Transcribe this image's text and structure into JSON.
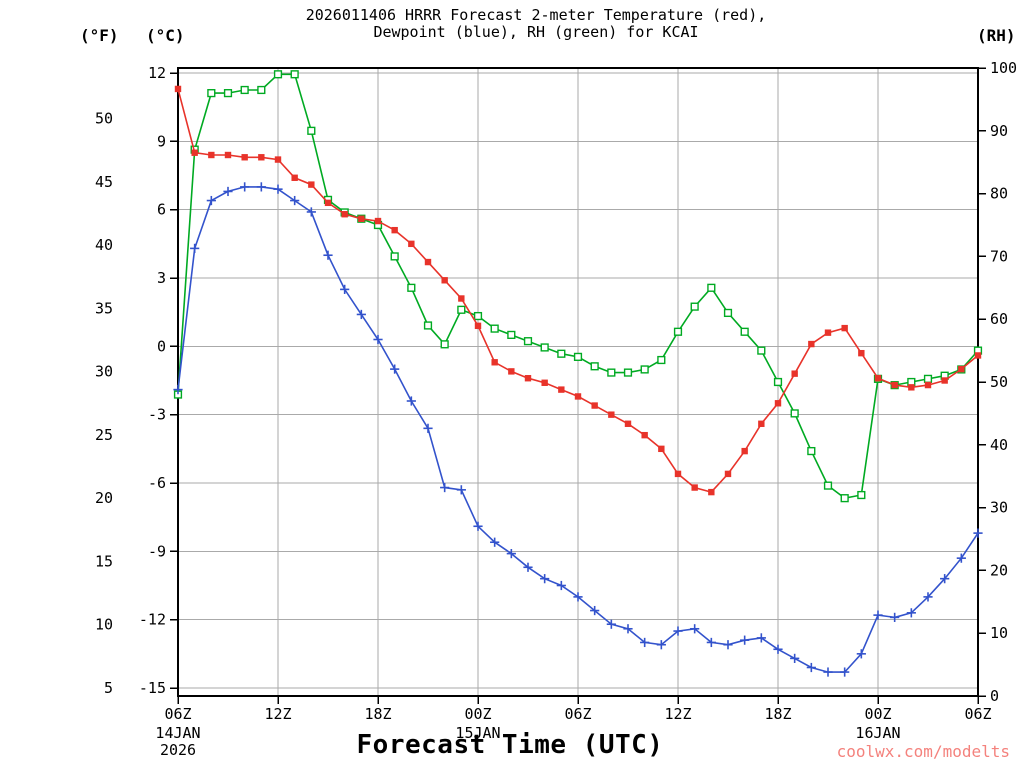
{
  "title": {
    "line1": "2026011406 HRRR Forecast 2-meter Temperature (red),",
    "line2": "Dewpoint (blue), RH (green) for KCAI"
  },
  "axes": {
    "f_label": "(°F)",
    "c_label": "(°C)",
    "rh_label": "(RH)",
    "xlabel": "Forecast Time (UTC)"
  },
  "watermark": {
    "text": "coolwx.com/modelts",
    "color": "#f4827d"
  },
  "chart_data": {
    "type": "line",
    "model": "HRRR",
    "run": "2026011406",
    "station": "KCAI",
    "grid_color": "#aaaaaa",
    "frame_color": "#000000",
    "x_axis": {
      "hours_total": 48,
      "start": "06Z 14JAN 2026",
      "step_hours": 1,
      "tick_hours": [
        0,
        6,
        12,
        18,
        24,
        30,
        36,
        42,
        48
      ],
      "tick_labels": [
        "06Z",
        "12Z",
        "18Z",
        "00Z",
        "06Z",
        "12Z",
        "18Z",
        "00Z",
        "06Z"
      ],
      "dates": [
        {
          "hour": 0,
          "lines": [
            "14JAN",
            "2026"
          ]
        },
        {
          "hour": 18,
          "lines": [
            "15JAN"
          ]
        },
        {
          "hour": 42,
          "lines": [
            "16JAN"
          ]
        }
      ]
    },
    "left_axis_c": {
      "min": -15,
      "max": 12,
      "ticks": [
        12,
        9,
        6,
        3,
        0,
        -3,
        -6,
        -9,
        -12,
        -15
      ]
    },
    "left_axis_f": {
      "ticks": [
        50,
        45,
        40,
        35,
        30,
        25,
        20,
        15,
        10,
        5
      ]
    },
    "right_axis_rh": {
      "min": 0,
      "max": 100,
      "ticks": [
        100,
        90,
        80,
        70,
        60,
        50,
        40,
        30,
        20,
        10,
        0
      ]
    },
    "series": [
      {
        "name": "2-meter Temperature",
        "axis": "c",
        "units": "°C",
        "color": "#e8332a",
        "marker": "filled-square",
        "values": [
          11.3,
          8.5,
          8.4,
          8.4,
          8.3,
          8.3,
          8.2,
          7.4,
          7.1,
          6.3,
          5.8,
          5.6,
          5.5,
          5.1,
          4.5,
          3.7,
          2.9,
          2.1,
          0.9,
          -0.7,
          -1.1,
          -1.4,
          -1.6,
          -1.9,
          -2.2,
          -2.6,
          -3.0,
          -3.4,
          -3.9,
          -4.5,
          -5.6,
          -6.2,
          -6.4,
          -5.6,
          -4.6,
          -3.4,
          -2.5,
          -1.2,
          0.1,
          0.6,
          0.8,
          -0.3,
          -1.4,
          -1.7,
          -1.8,
          -1.7,
          -1.5,
          -1.0,
          -0.4
        ]
      },
      {
        "name": "Dewpoint",
        "axis": "c",
        "units": "°C",
        "color": "#3353cc",
        "marker": "plus",
        "values": [
          -1.9,
          4.3,
          6.4,
          6.8,
          7.0,
          7.0,
          6.9,
          6.4,
          5.9,
          4.0,
          2.5,
          1.4,
          0.3,
          -1.0,
          -2.4,
          -3.6,
          -6.2,
          -6.3,
          -7.9,
          -8.6,
          -9.1,
          -9.7,
          -10.2,
          -10.5,
          -11.0,
          -11.6,
          -12.2,
          -12.4,
          -13.0,
          -13.1,
          -12.5,
          -12.4,
          -13.0,
          -13.1,
          -12.9,
          -12.8,
          -13.3,
          -13.7,
          -14.1,
          -14.3,
          -14.3,
          -13.5,
          -11.8,
          -11.9,
          -11.7,
          -11.0,
          -10.2,
          -9.3,
          -8.2
        ]
      },
      {
        "name": "Relative Humidity",
        "axis": "rh",
        "units": "%",
        "color": "#00aa22",
        "marker": "open-square",
        "values": [
          48,
          87,
          96,
          96,
          96.5,
          96.5,
          99,
          99,
          90,
          79,
          77,
          76,
          75,
          70,
          65,
          59,
          56,
          61.5,
          60.5,
          58.5,
          57.5,
          56.5,
          55.5,
          54.5,
          54,
          52.5,
          51.5,
          51.5,
          52,
          53.5,
          58,
          62,
          65,
          61,
          58,
          55,
          50,
          45,
          39,
          33.5,
          31.5,
          32,
          50.5,
          49.5,
          50,
          50.5,
          51,
          52,
          55
        ]
      }
    ]
  }
}
